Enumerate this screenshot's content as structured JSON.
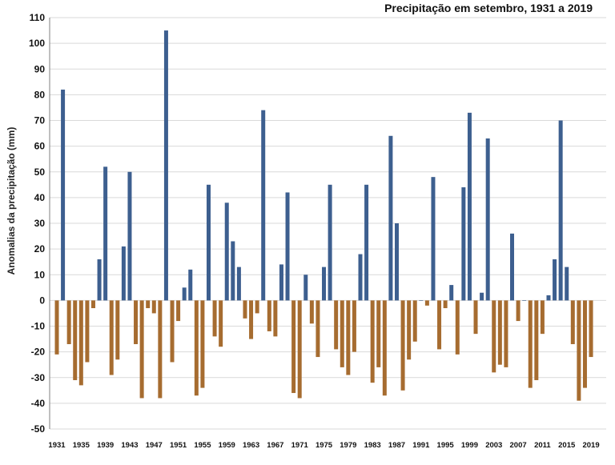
{
  "chart_data": {
    "type": "bar",
    "title": "Precipitação em setembro, 1931 a 2019",
    "xlabel": "",
    "ylabel": "Anomalias da precipitação (mm)",
    "ylim": [
      -50,
      110
    ],
    "yticks": [
      110,
      100,
      90,
      80,
      70,
      60,
      50,
      40,
      30,
      20,
      10,
      0,
      -10,
      -20,
      -30,
      -40,
      -50
    ],
    "xtick_labels": [
      "1931",
      "1935",
      "1939",
      "1943",
      "1947",
      "1951",
      "1955",
      "1959",
      "1963",
      "1967",
      "1971",
      "1975",
      "1979",
      "1983",
      "1987",
      "1991",
      "1995",
      "1999",
      "2003",
      "2007",
      "2011",
      "2015",
      "2019"
    ],
    "grid": true,
    "legend": "none",
    "positive_color": "#3d5f8f",
    "negative_color": "#a66c30",
    "x": [
      1931,
      1932,
      1933,
      1934,
      1935,
      1936,
      1937,
      1938,
      1939,
      1940,
      1941,
      1942,
      1943,
      1944,
      1945,
      1946,
      1947,
      1948,
      1949,
      1950,
      1951,
      1952,
      1953,
      1954,
      1955,
      1956,
      1957,
      1958,
      1959,
      1960,
      1961,
      1962,
      1963,
      1964,
      1965,
      1966,
      1967,
      1968,
      1969,
      1970,
      1971,
      1972,
      1973,
      1974,
      1975,
      1976,
      1977,
      1978,
      1979,
      1980,
      1981,
      1982,
      1983,
      1984,
      1985,
      1986,
      1987,
      1988,
      1989,
      1990,
      1991,
      1992,
      1993,
      1994,
      1995,
      1996,
      1997,
      1998,
      1999,
      2000,
      2001,
      2002,
      2003,
      2004,
      2005,
      2006,
      2007,
      2008,
      2009,
      2010,
      2011,
      2012,
      2013,
      2014,
      2015,
      2016,
      2017,
      2018,
      2019
    ],
    "values": [
      -21,
      82,
      -17,
      -31,
      -33,
      -24,
      -3,
      16,
      52,
      -29,
      -23,
      21,
      50,
      -17,
      -38,
      -3,
      -5,
      -38,
      105,
      -24,
      -8,
      5,
      12,
      -37,
      -34,
      45,
      -14,
      -18,
      38,
      23,
      13,
      -7,
      -15,
      -5,
      74,
      -12,
      -14,
      14,
      42,
      -36,
      -38,
      10,
      -9,
      -22,
      13,
      45,
      -19,
      -26,
      -29,
      -20,
      18,
      45,
      -32,
      -26,
      -37,
      64,
      30,
      -35,
      -23,
      -16,
      0,
      -2,
      48,
      -19,
      -3,
      6,
      -21,
      44,
      73,
      -13,
      3,
      63,
      -28,
      -25,
      -26,
      26,
      -8,
      0,
      -34,
      -31,
      -13,
      2,
      16,
      70,
      13,
      -17,
      -39,
      -34,
      -22
    ]
  }
}
